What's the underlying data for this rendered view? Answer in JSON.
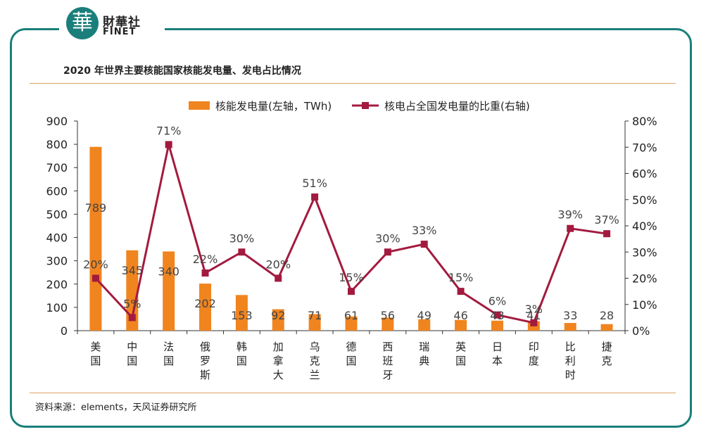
{
  "brand": {
    "logo_char": "華",
    "name_cn": "財華社",
    "name_en": "FINET"
  },
  "title": "2020 年世界主要核能国家核能发电量、发电占比情况",
  "source": "资料来源：elements，天风证券研究所",
  "colors": {
    "frame": "#1a7f7a",
    "bar": "#f0841e",
    "line": "#a31a3f",
    "rule": "#d9a560"
  },
  "chart_data": {
    "type": "bar+line",
    "categories": [
      "美国",
      "中国",
      "法国",
      "俄罗斯",
      "韩国",
      "加拿大",
      "乌克兰",
      "德国",
      "西班牙",
      "瑞典",
      "英国",
      "日本",
      "印度",
      "比利时",
      "捷克"
    ],
    "series": [
      {
        "name": "核能发电量(左轴，TWh)",
        "type": "bar",
        "axis": "left",
        "values": [
          789,
          345,
          340,
          202,
          153,
          92,
          71,
          61,
          56,
          49,
          46,
          43,
          41,
          33,
          28
        ],
        "labels": [
          "789",
          "345",
          "340",
          "202",
          "153",
          "92",
          "71",
          "61",
          "56",
          "49",
          "46",
          "43",
          "41",
          "33",
          "28"
        ]
      },
      {
        "name": "核电占全国发电量的比重(右轴)",
        "type": "line",
        "axis": "right",
        "values": [
          20,
          5,
          71,
          22,
          30,
          20,
          51,
          15,
          30,
          33,
          15,
          6,
          3,
          39,
          37
        ],
        "labels": [
          "20%",
          "5%",
          "71%",
          "22%",
          "30%",
          "20%",
          "51%",
          "15%",
          "30%",
          "33%",
          "15%",
          "6%",
          "3%",
          "39%",
          "37%"
        ]
      }
    ],
    "left_axis": {
      "range": [
        0,
        900
      ],
      "ticks": [
        0,
        100,
        200,
        300,
        400,
        500,
        600,
        700,
        800,
        900
      ],
      "tick_labels": [
        "0",
        "100",
        "200",
        "300",
        "400",
        "500",
        "600",
        "700",
        "800",
        "900"
      ]
    },
    "right_axis": {
      "range": [
        0,
        80
      ],
      "ticks": [
        0,
        10,
        20,
        30,
        40,
        50,
        60,
        70,
        80
      ],
      "tick_labels": [
        "0%",
        "10%",
        "20%",
        "30%",
        "40%",
        "50%",
        "60%",
        "70%",
        "80%"
      ]
    },
    "grid": false,
    "legend_position": "top"
  }
}
